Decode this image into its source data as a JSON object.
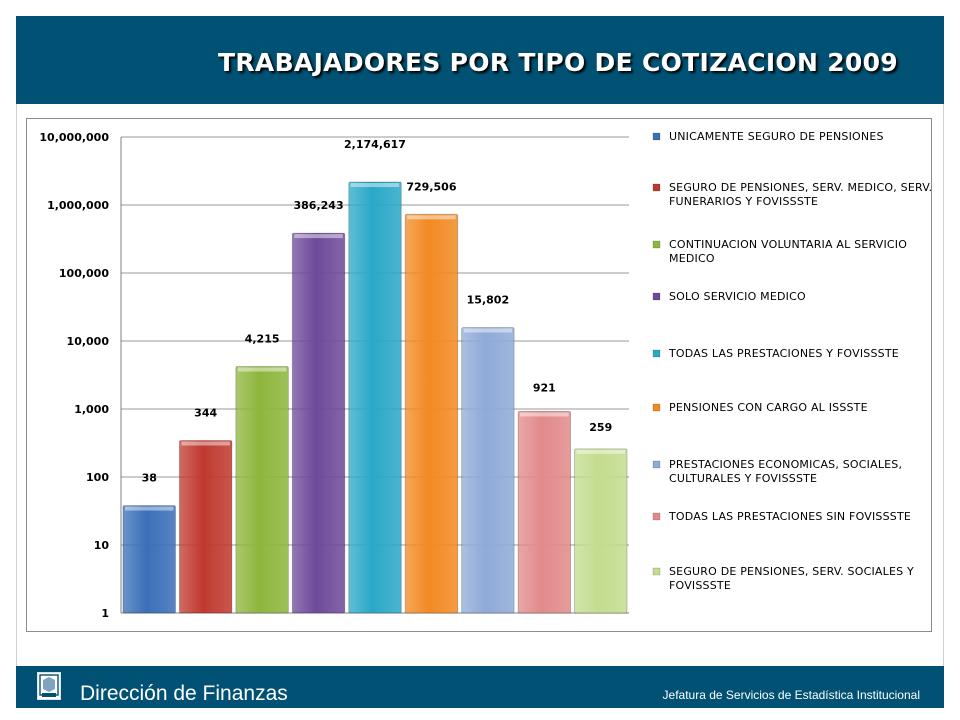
{
  "header": {
    "title": "TRABAJADORES POR TIPO DE COTIZACION 2009"
  },
  "footer": {
    "left_text": "Dirección de Finanzas",
    "right_text": "Jefatura de Servicios de Estadística Institucional",
    "logo_icon": "issste-logo"
  },
  "colors": {
    "header_bg": "#005173",
    "grid": "#9a9a9a"
  },
  "chart_data": {
    "type": "bar",
    "title": "TRABAJADORES POR TIPO DE COTIZACION 2009",
    "xlabel": "",
    "ylabel": "",
    "y_scale": "log",
    "ylim": [
      1,
      10000000
    ],
    "grid": true,
    "legend_position": "right",
    "y_ticks": [
      "1",
      "10",
      "100",
      "1,000",
      "10,000",
      "100,000",
      "1,000,000",
      "10,000,000"
    ],
    "series": [
      {
        "name": "UNICAMENTE SEGURO DE PENSIONES",
        "value": 38,
        "label": "38",
        "color": "#3a6fb8"
      },
      {
        "name": "SEGURO DE PENSIONES, SERV. MEDICO, SERV. FUNERARIOS Y FOVISSSTE",
        "value": 344,
        "label": "344",
        "color": "#c0392f"
      },
      {
        "name": "CONTINUACION VOLUNTARIA AL SERVICIO MEDICO",
        "value": 4215,
        "label": "4,215",
        "color": "#8db63c"
      },
      {
        "name": "SOLO SERVICIO MEDICO",
        "value": 386243,
        "label": "386,243",
        "color": "#6e4a9a"
      },
      {
        "name": "TODAS LAS PRESTACIONES Y FOVISSSTE",
        "value": 2174617,
        "label": "2,174,617",
        "color": "#2aa8c8"
      },
      {
        "name": "PENSIONES CON CARGO AL ISSSTE",
        "value": 729506,
        "label": "729,506",
        "color": "#f28a22"
      },
      {
        "name": "PRESTACIONES ECONOMICAS, SOCIALES, CULTURALES Y FOVISSSTE",
        "value": 15802,
        "label": "15,802",
        "color": "#8faad8"
      },
      {
        "name": "TODAS LAS PRESTACIONES SIN FOVISSSTE",
        "value": 921,
        "label": "921",
        "color": "#e28a8a"
      },
      {
        "name": "SEGURO DE PENSIONES, SERV. SOCIALES Y FOVISSSTE",
        "value": 259,
        "label": "259",
        "color": "#c3dc8e"
      }
    ]
  }
}
